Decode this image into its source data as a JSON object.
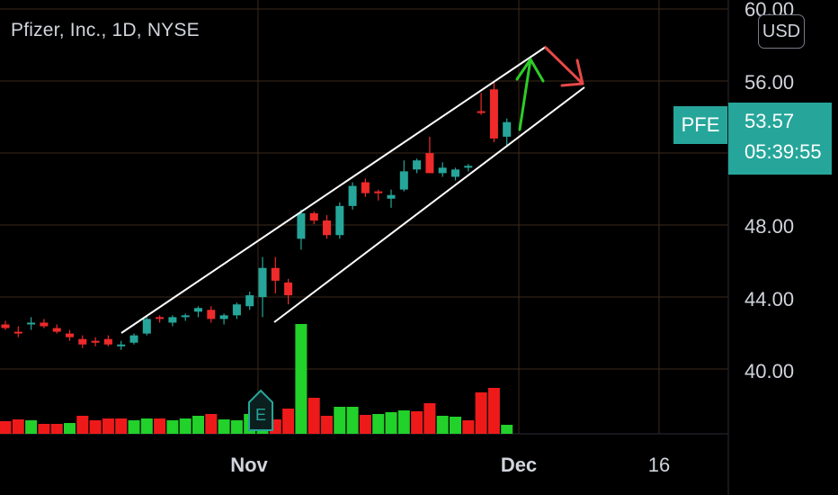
{
  "header": {
    "title": "Pfizer, Inc., 1D, NYSE",
    "currency": "USD"
  },
  "price_label": {
    "symbol": "PFE",
    "price": "53.57",
    "countdown": "05:39:55",
    "color": "#26a69a"
  },
  "earnings_marker": "E",
  "colors": {
    "up": "#26a69a",
    "down": "#ef2a2a",
    "vol_up": "#22d12a",
    "vol_down": "#ee1a1a",
    "grid": "#3b2a1c"
  },
  "chart_data": {
    "type": "candlestick",
    "y_ticks": [
      "60.00",
      "56.00",
      "48.00",
      "44.00",
      "40.00"
    ],
    "x_ticks": [
      "Nov",
      "Dec",
      "16"
    ],
    "ylim": [
      36.5,
      60.3
    ],
    "candles": [
      {
        "o": 42.5,
        "h": 42.7,
        "l": 42.2,
        "c": 42.3
      },
      {
        "o": 42.1,
        "h": 42.4,
        "l": 41.8,
        "c": 42.0
      },
      {
        "o": 42.5,
        "h": 42.9,
        "l": 42.2,
        "c": 42.6
      },
      {
        "o": 42.6,
        "h": 42.8,
        "l": 42.3,
        "c": 42.4
      },
      {
        "o": 42.3,
        "h": 42.5,
        "l": 42.0,
        "c": 42.1
      },
      {
        "o": 42.0,
        "h": 42.2,
        "l": 41.6,
        "c": 41.8
      },
      {
        "o": 41.7,
        "h": 41.9,
        "l": 41.2,
        "c": 41.4
      },
      {
        "o": 41.6,
        "h": 41.8,
        "l": 41.3,
        "c": 41.5
      },
      {
        "o": 41.7,
        "h": 41.9,
        "l": 41.3,
        "c": 41.4
      },
      {
        "o": 41.3,
        "h": 41.6,
        "l": 41.1,
        "c": 41.4
      },
      {
        "o": 41.5,
        "h": 42.0,
        "l": 41.4,
        "c": 41.9
      },
      {
        "o": 42.0,
        "h": 42.9,
        "l": 41.9,
        "c": 42.8
      },
      {
        "o": 42.9,
        "h": 43.0,
        "l": 42.6,
        "c": 42.8
      },
      {
        "o": 42.6,
        "h": 43.0,
        "l": 42.4,
        "c": 42.9
      },
      {
        "o": 42.9,
        "h": 43.1,
        "l": 42.7,
        "c": 43.0
      },
      {
        "o": 43.2,
        "h": 43.5,
        "l": 42.9,
        "c": 43.4
      },
      {
        "o": 43.3,
        "h": 43.5,
        "l": 42.6,
        "c": 42.8
      },
      {
        "o": 42.8,
        "h": 43.1,
        "l": 42.5,
        "c": 43.0
      },
      {
        "o": 43.0,
        "h": 43.7,
        "l": 42.8,
        "c": 43.6
      },
      {
        "o": 43.5,
        "h": 44.3,
        "l": 43.3,
        "c": 44.1
      },
      {
        "o": 44.0,
        "h": 46.2,
        "l": 42.9,
        "c": 45.6
      },
      {
        "o": 45.6,
        "h": 46.2,
        "l": 44.2,
        "c": 44.9
      },
      {
        "o": 44.8,
        "h": 45.0,
        "l": 43.6,
        "c": 44.1
      },
      {
        "o": 47.2,
        "h": 48.8,
        "l": 46.6,
        "c": 48.6
      },
      {
        "o": 48.6,
        "h": 48.7,
        "l": 48.0,
        "c": 48.2
      },
      {
        "o": 48.2,
        "h": 48.5,
        "l": 47.2,
        "c": 47.4
      },
      {
        "o": 47.4,
        "h": 49.2,
        "l": 47.2,
        "c": 49.0
      },
      {
        "o": 49.0,
        "h": 50.3,
        "l": 48.8,
        "c": 50.1
      },
      {
        "o": 50.3,
        "h": 50.5,
        "l": 49.5,
        "c": 49.7
      },
      {
        "o": 49.8,
        "h": 49.9,
        "l": 49.3,
        "c": 49.7
      },
      {
        "o": 49.4,
        "h": 49.9,
        "l": 48.9,
        "c": 49.6
      },
      {
        "o": 49.9,
        "h": 51.5,
        "l": 49.8,
        "c": 50.9
      },
      {
        "o": 51.0,
        "h": 51.6,
        "l": 50.8,
        "c": 51.5
      },
      {
        "o": 51.9,
        "h": 52.8,
        "l": 50.8,
        "c": 50.8
      },
      {
        "o": 50.8,
        "h": 51.4,
        "l": 50.6,
        "c": 51.1
      },
      {
        "o": 50.6,
        "h": 51.1,
        "l": 50.4,
        "c": 51.0
      },
      {
        "o": 51.1,
        "h": 51.3,
        "l": 50.9,
        "c": 51.2
      },
      {
        "o": 54.2,
        "h": 55.2,
        "l": 54.0,
        "c": 54.1
      },
      {
        "o": 55.4,
        "h": 55.8,
        "l": 52.5,
        "c": 52.7
      },
      {
        "o": 52.8,
        "h": 53.8,
        "l": 52.3,
        "c": 53.6
      }
    ],
    "volume": [
      14,
      16,
      15,
      11,
      11,
      12,
      20,
      15,
      17,
      17,
      15,
      17,
      17,
      15,
      17,
      20,
      22,
      16,
      15,
      22,
      24,
      16,
      28,
      122,
      40,
      20,
      30,
      30,
      21,
      22,
      24,
      26,
      25,
      34,
      20,
      19,
      15,
      46,
      51,
      10
    ],
    "volume_dir": [
      "down",
      "down",
      "up",
      "down",
      "down",
      "up",
      "down",
      "down",
      "down",
      "down",
      "up",
      "up",
      "down",
      "up",
      "up",
      "up",
      "down",
      "up",
      "up",
      "up",
      "up",
      "down",
      "down",
      "up",
      "down",
      "down",
      "up",
      "up",
      "down",
      "up",
      "up",
      "up",
      "down",
      "down",
      "up",
      "up",
      "down",
      "down",
      "down",
      "up"
    ]
  }
}
